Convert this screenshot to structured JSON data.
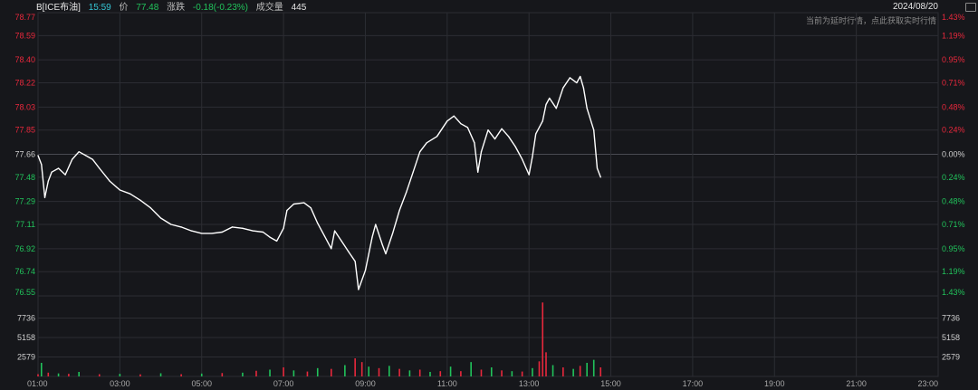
{
  "header": {
    "symbol": "B[ICE布油]",
    "time": "15:59",
    "price_label": "价",
    "price": "77.48",
    "change_label": "涨跌",
    "change": "-0.18(-0.23%)",
    "volume_label": "成交量",
    "volume": "445",
    "date": "2024/08/20",
    "notice": "当前为延时行情，点此获取实时行情"
  },
  "colors": {
    "up": "#e8283c",
    "down": "#21c35b",
    "line": "#ffffff",
    "grid": "#2c2d33",
    "axis": "#a8a8a8"
  },
  "chart_data": {
    "type": "line",
    "prev_close": 77.66,
    "ylim": [
      76.55,
      78.77
    ],
    "y_ticks": [
      "78.77",
      "78.59",
      "78.40",
      "78.22",
      "78.03",
      "77.85",
      "77.66",
      "77.48",
      "77.29",
      "77.11",
      "76.92",
      "76.74",
      "76.55"
    ],
    "pct_ticks": [
      "1.43%",
      "1.19%",
      "0.95%",
      "0.71%",
      "0.48%",
      "0.24%",
      "0.00%",
      "0.24%",
      "0.48%",
      "0.71%",
      "0.95%",
      "1.19%",
      "1.43%"
    ],
    "x_ticks": [
      "01:00",
      "03:00",
      "05:00",
      "07:00",
      "09:00",
      "11:00",
      "13:00",
      "15:00",
      "17:00",
      "19:00",
      "21:00",
      "23:00"
    ],
    "vol_ticks": [
      "7736",
      "5158",
      "2579"
    ],
    "vol_max": 10315,
    "price_series": [
      {
        "t": "01:00",
        "v": 77.65
      },
      {
        "t": "01:05",
        "v": 77.58
      },
      {
        "t": "01:10",
        "v": 77.32
      },
      {
        "t": "01:15",
        "v": 77.45
      },
      {
        "t": "01:20",
        "v": 77.52
      },
      {
        "t": "01:30",
        "v": 77.55
      },
      {
        "t": "01:40",
        "v": 77.5
      },
      {
        "t": "01:50",
        "v": 77.62
      },
      {
        "t": "02:00",
        "v": 77.68
      },
      {
        "t": "02:10",
        "v": 77.65
      },
      {
        "t": "02:20",
        "v": 77.62
      },
      {
        "t": "02:30",
        "v": 77.55
      },
      {
        "t": "02:45",
        "v": 77.45
      },
      {
        "t": "03:00",
        "v": 77.38
      },
      {
        "t": "03:15",
        "v": 77.35
      },
      {
        "t": "03:30",
        "v": 77.3
      },
      {
        "t": "03:45",
        "v": 77.24
      },
      {
        "t": "04:00",
        "v": 77.16
      },
      {
        "t": "04:15",
        "v": 77.11
      },
      {
        "t": "04:30",
        "v": 77.09
      },
      {
        "t": "04:45",
        "v": 77.06
      },
      {
        "t": "05:00",
        "v": 77.04
      },
      {
        "t": "05:15",
        "v": 77.04
      },
      {
        "t": "05:30",
        "v": 77.05
      },
      {
        "t": "05:45",
        "v": 77.09
      },
      {
        "t": "06:00",
        "v": 77.08
      },
      {
        "t": "06:15",
        "v": 77.06
      },
      {
        "t": "06:30",
        "v": 77.05
      },
      {
        "t": "06:40",
        "v": 77.01
      },
      {
        "t": "06:50",
        "v": 76.98
      },
      {
        "t": "07:00",
        "v": 77.08
      },
      {
        "t": "07:05",
        "v": 77.22
      },
      {
        "t": "07:15",
        "v": 77.27
      },
      {
        "t": "07:30",
        "v": 77.28
      },
      {
        "t": "07:40",
        "v": 77.24
      },
      {
        "t": "07:50",
        "v": 77.12
      },
      {
        "t": "08:00",
        "v": 77.02
      },
      {
        "t": "08:10",
        "v": 76.92
      },
      {
        "t": "08:15",
        "v": 77.06
      },
      {
        "t": "08:25",
        "v": 76.98
      },
      {
        "t": "08:35",
        "v": 76.9
      },
      {
        "t": "08:45",
        "v": 76.82
      },
      {
        "t": "08:50",
        "v": 76.6
      },
      {
        "t": "09:00",
        "v": 76.75
      },
      {
        "t": "09:10",
        "v": 77.01
      },
      {
        "t": "09:15",
        "v": 77.11
      },
      {
        "t": "09:25",
        "v": 76.95
      },
      {
        "t": "09:30",
        "v": 76.88
      },
      {
        "t": "09:40",
        "v": 77.04
      },
      {
        "t": "09:50",
        "v": 77.22
      },
      {
        "t": "10:00",
        "v": 77.36
      },
      {
        "t": "10:10",
        "v": 77.52
      },
      {
        "t": "10:20",
        "v": 77.68
      },
      {
        "t": "10:30",
        "v": 77.75
      },
      {
        "t": "10:45",
        "v": 77.8
      },
      {
        "t": "11:00",
        "v": 77.92
      },
      {
        "t": "11:10",
        "v": 77.96
      },
      {
        "t": "11:20",
        "v": 77.9
      },
      {
        "t": "11:30",
        "v": 77.87
      },
      {
        "t": "11:40",
        "v": 77.75
      },
      {
        "t": "11:45",
        "v": 77.52
      },
      {
        "t": "11:50",
        "v": 77.68
      },
      {
        "t": "12:00",
        "v": 77.85
      },
      {
        "t": "12:10",
        "v": 77.78
      },
      {
        "t": "12:20",
        "v": 77.86
      },
      {
        "t": "12:30",
        "v": 77.8
      },
      {
        "t": "12:40",
        "v": 77.72
      },
      {
        "t": "12:50",
        "v": 77.62
      },
      {
        "t": "13:00",
        "v": 77.5
      },
      {
        "t": "13:05",
        "v": 77.64
      },
      {
        "t": "13:10",
        "v": 77.82
      },
      {
        "t": "13:20",
        "v": 77.92
      },
      {
        "t": "13:25",
        "v": 78.05
      },
      {
        "t": "13:30",
        "v": 78.1
      },
      {
        "t": "13:40",
        "v": 78.02
      },
      {
        "t": "13:50",
        "v": 78.18
      },
      {
        "t": "14:00",
        "v": 78.26
      },
      {
        "t": "14:10",
        "v": 78.22
      },
      {
        "t": "14:15",
        "v": 78.27
      },
      {
        "t": "14:20",
        "v": 78.18
      },
      {
        "t": "14:25",
        "v": 78.02
      },
      {
        "t": "14:35",
        "v": 77.85
      },
      {
        "t": "14:40",
        "v": 77.55
      },
      {
        "t": "14:45",
        "v": 77.48
      }
    ],
    "volume_bars": [
      {
        "t": "01:00",
        "v": 300,
        "dir": "up"
      },
      {
        "t": "01:05",
        "v": 1800,
        "dir": "down"
      },
      {
        "t": "01:15",
        "v": 500,
        "dir": "up"
      },
      {
        "t": "01:30",
        "v": 400,
        "dir": "down"
      },
      {
        "t": "01:45",
        "v": 350,
        "dir": "up"
      },
      {
        "t": "02:00",
        "v": 600,
        "dir": "down"
      },
      {
        "t": "02:30",
        "v": 300,
        "dir": "up"
      },
      {
        "t": "03:00",
        "v": 350,
        "dir": "down"
      },
      {
        "t": "03:30",
        "v": 280,
        "dir": "up"
      },
      {
        "t": "04:00",
        "v": 420,
        "dir": "down"
      },
      {
        "t": "04:30",
        "v": 300,
        "dir": "up"
      },
      {
        "t": "05:00",
        "v": 380,
        "dir": "down"
      },
      {
        "t": "05:30",
        "v": 450,
        "dir": "up"
      },
      {
        "t": "06:00",
        "v": 500,
        "dir": "down"
      },
      {
        "t": "06:20",
        "v": 750,
        "dir": "up"
      },
      {
        "t": "06:40",
        "v": 900,
        "dir": "down"
      },
      {
        "t": "07:00",
        "v": 1200,
        "dir": "up"
      },
      {
        "t": "07:15",
        "v": 800,
        "dir": "down"
      },
      {
        "t": "07:35",
        "v": 650,
        "dir": "up"
      },
      {
        "t": "07:50",
        "v": 1100,
        "dir": "down"
      },
      {
        "t": "08:10",
        "v": 1000,
        "dir": "up"
      },
      {
        "t": "08:30",
        "v": 1500,
        "dir": "down"
      },
      {
        "t": "08:45",
        "v": 2400,
        "dir": "up"
      },
      {
        "t": "08:55",
        "v": 1900,
        "dir": "up"
      },
      {
        "t": "09:05",
        "v": 1300,
        "dir": "down"
      },
      {
        "t": "09:20",
        "v": 1100,
        "dir": "up"
      },
      {
        "t": "09:35",
        "v": 1400,
        "dir": "down"
      },
      {
        "t": "09:50",
        "v": 1000,
        "dir": "up"
      },
      {
        "t": "10:05",
        "v": 800,
        "dir": "down"
      },
      {
        "t": "10:20",
        "v": 900,
        "dir": "up"
      },
      {
        "t": "10:35",
        "v": 600,
        "dir": "down"
      },
      {
        "t": "10:50",
        "v": 700,
        "dir": "up"
      },
      {
        "t": "11:05",
        "v": 1300,
        "dir": "down"
      },
      {
        "t": "11:20",
        "v": 700,
        "dir": "up"
      },
      {
        "t": "11:35",
        "v": 1900,
        "dir": "down"
      },
      {
        "t": "11:50",
        "v": 900,
        "dir": "up"
      },
      {
        "t": "12:05",
        "v": 1200,
        "dir": "down"
      },
      {
        "t": "12:20",
        "v": 800,
        "dir": "up"
      },
      {
        "t": "12:35",
        "v": 700,
        "dir": "down"
      },
      {
        "t": "12:50",
        "v": 650,
        "dir": "up"
      },
      {
        "t": "13:05",
        "v": 1100,
        "dir": "down"
      },
      {
        "t": "13:15",
        "v": 2000,
        "dir": "up"
      },
      {
        "t": "13:20",
        "v": 9800,
        "dir": "up"
      },
      {
        "t": "13:25",
        "v": 3200,
        "dir": "up"
      },
      {
        "t": "13:35",
        "v": 1500,
        "dir": "down"
      },
      {
        "t": "13:50",
        "v": 1200,
        "dir": "up"
      },
      {
        "t": "14:05",
        "v": 1000,
        "dir": "down"
      },
      {
        "t": "14:15",
        "v": 1400,
        "dir": "up"
      },
      {
        "t": "14:25",
        "v": 1800,
        "dir": "down"
      },
      {
        "t": "14:35",
        "v": 2200,
        "dir": "down"
      },
      {
        "t": "14:45",
        "v": 1200,
        "dir": "up"
      }
    ]
  }
}
